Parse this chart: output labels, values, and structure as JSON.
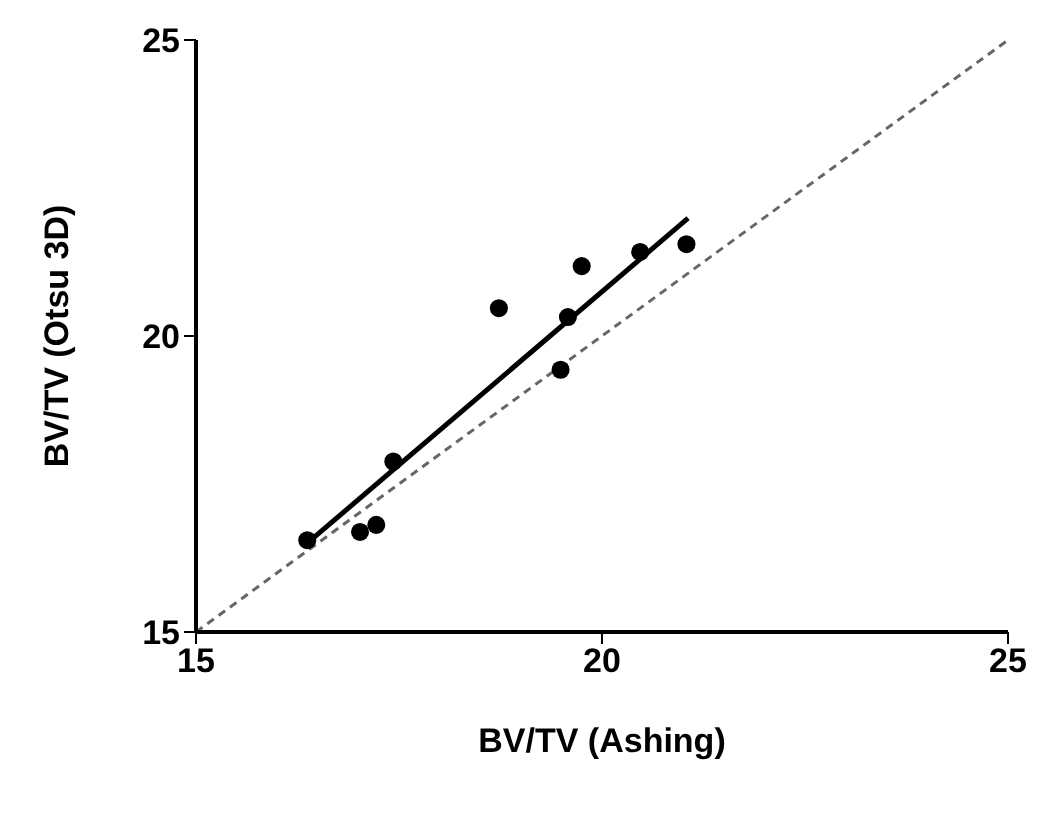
{
  "chart_data": {
    "type": "scatter",
    "xlabel": "BV/TV (Ashing)",
    "ylabel": "BV/TV (Otsu 3D)",
    "xlim": [
      15,
      25
    ],
    "ylim": [
      15,
      25
    ],
    "xticks": [
      15,
      20,
      25
    ],
    "yticks": [
      15,
      20,
      25
    ],
    "grid": false,
    "legend": false,
    "series": [
      {
        "color": "#000000",
        "marker": "circle",
        "x": [
          16.37,
          17.02,
          17.22,
          17.43,
          18.73,
          19.49,
          19.58,
          19.75,
          20.47,
          21.04
        ],
        "values": [
          16.55,
          16.69,
          16.81,
          17.88,
          20.47,
          19.43,
          20.32,
          21.18,
          21.42,
          21.55
        ]
      },
      {
        "type": "line",
        "color": "#000000",
        "line_style": "solid",
        "marker": "none",
        "x": [
          16.37,
          21.06
        ],
        "values": [
          16.5,
          21.99
        ]
      },
      {
        "type": "line",
        "color": "#666666",
        "line_style": "dashed",
        "marker": "none",
        "x": [
          15,
          25
        ],
        "values": [
          15,
          25
        ]
      }
    ]
  }
}
